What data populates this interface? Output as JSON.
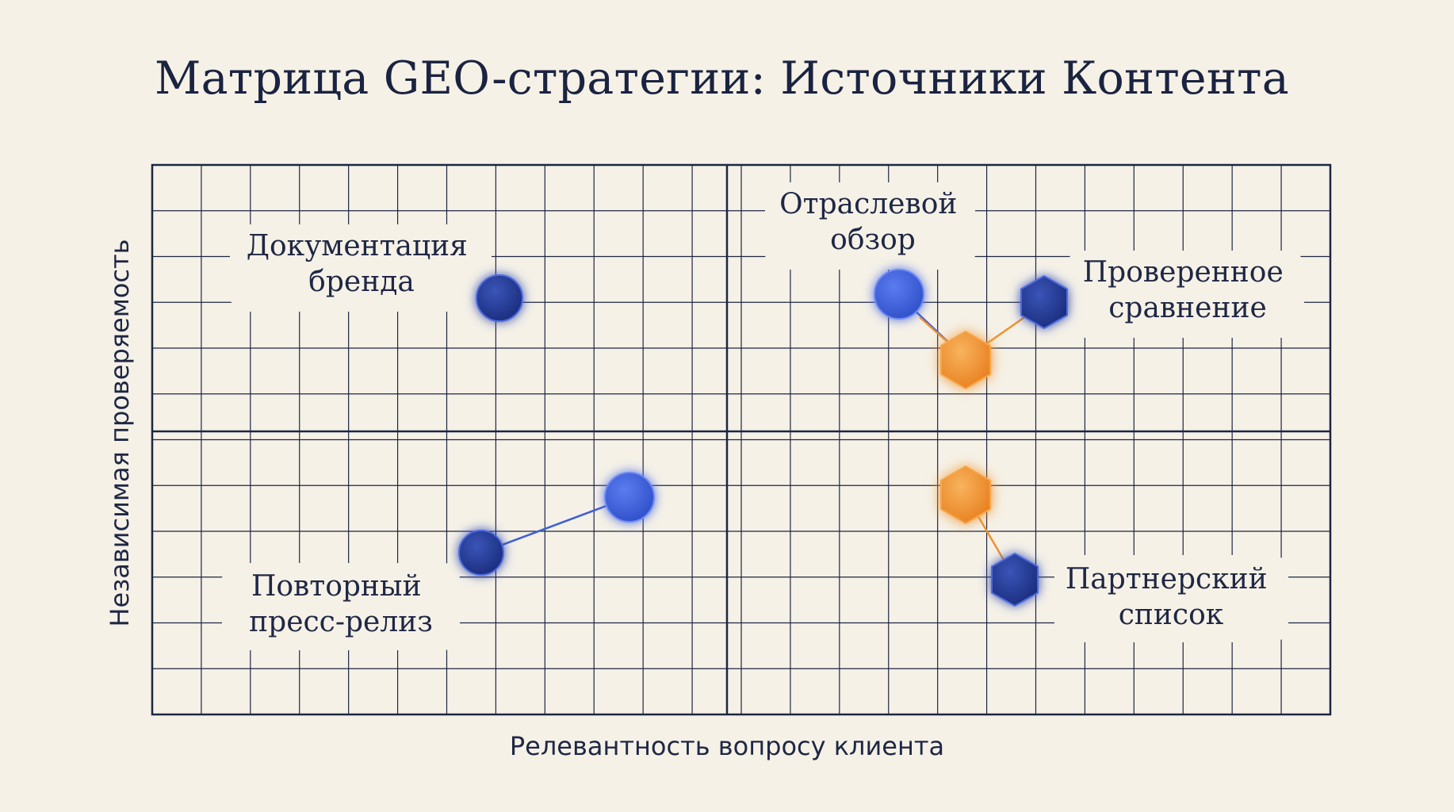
{
  "title": "Матрица GEO-стратегии: Источники Контента",
  "axes": {
    "x_label": "Релевантность вопросу клиента",
    "y_label": "Независимая проверяемость"
  },
  "colors": {
    "background": "#f5f1e7",
    "grid": "#1d2642",
    "blue_dark": "#22378f",
    "blue_light": "#3f5fd6",
    "orange": "#f0922e"
  },
  "nodes": [
    {
      "id": "brand-doc",
      "shape": "circle",
      "color": "blue_dark",
      "quadrant": "top-left"
    },
    {
      "id": "industry-review",
      "shape": "circle",
      "color": "blue_light",
      "quadrant": "top-right"
    },
    {
      "id": "verified-comparison",
      "shape": "hexagon",
      "color": "blue_dark",
      "quadrant": "top-right"
    },
    {
      "id": "hub-top",
      "shape": "hexagon",
      "color": "orange",
      "quadrant": "top-right"
    },
    {
      "id": "hub-bottom",
      "shape": "hexagon",
      "color": "orange",
      "quadrant": "bottom-right"
    },
    {
      "id": "partner-list",
      "shape": "hexagon",
      "color": "blue_dark",
      "quadrant": "bottom-right"
    },
    {
      "id": "press-a",
      "shape": "circle",
      "color": "blue_dark",
      "quadrant": "bottom-left"
    },
    {
      "id": "press-b",
      "shape": "circle",
      "color": "blue_light",
      "quadrant": "bottom-left"
    }
  ],
  "edges": [
    {
      "from": "industry-review",
      "to": "hub-top"
    },
    {
      "from": "verified-comparison",
      "to": "hub-top"
    },
    {
      "from": "hub-bottom",
      "to": "partner-list"
    },
    {
      "from": "press-a",
      "to": "press-b"
    }
  ],
  "labels": {
    "brand_doc": [
      "Документация",
      "бренда"
    ],
    "industry_review": [
      "Отраслевой",
      "обзор"
    ],
    "verified_comparison": [
      "Проверенное",
      "сравнение"
    ],
    "press_release": [
      "Повторный",
      "пресс-релиз"
    ],
    "partner_list": [
      "Партнерский",
      "список"
    ]
  }
}
